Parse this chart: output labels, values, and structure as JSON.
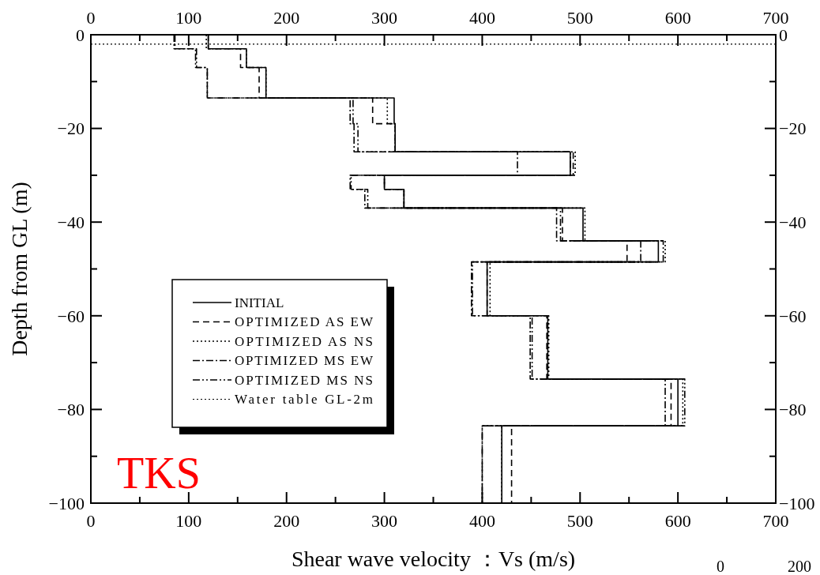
{
  "chart_data": {
    "type": "line",
    "xlabel": "Shear wave velocity ：Vs (m/s)",
    "ylabel": "Depth from GL (m)",
    "xlim": [
      0,
      700
    ],
    "xticks": [
      0,
      {
        "value": 50,
        "label": null
      },
      100,
      {
        "value": 150,
        "label": null
      },
      200,
      {
        "value": 250,
        "label": null
      },
      300,
      {
        "value": 350,
        "label": null
      },
      400,
      {
        "value": 450,
        "label": null
      },
      500,
      {
        "value": 550,
        "label": null
      },
      600,
      {
        "value": 650,
        "label": null
      },
      700
    ],
    "x2lim": [
      0,
      700
    ],
    "x2ticks": [
      0,
      {
        "value": 50,
        "label": null
      },
      100,
      {
        "value": 150,
        "label": null
      },
      200,
      {
        "value": 250,
        "label": null
      },
      300,
      {
        "value": 350,
        "label": null
      },
      400,
      {
        "value": 450,
        "label": null
      },
      500,
      {
        "value": 550,
        "label": null
      },
      600,
      {
        "value": 650,
        "label": null
      },
      700
    ],
    "ylim": [
      -100,
      0
    ],
    "yticks": [
      -100,
      {
        "value": -90,
        "label": null
      },
      -80,
      {
        "value": -70,
        "label": null
      },
      -60,
      {
        "value": -50,
        "label": null
      },
      -40,
      {
        "value": -30,
        "label": null
      },
      -20,
      {
        "value": -10,
        "label": null
      },
      0
    ],
    "y2lim": [
      -100,
      0
    ],
    "y2ticks": [
      -100,
      {
        "value": -90,
        "label": null
      },
      -80,
      {
        "value": -70,
        "label": null
      },
      -60,
      {
        "value": -50,
        "label": null
      },
      -40,
      {
        "value": -30,
        "label": null
      },
      -20,
      {
        "value": -10,
        "label": null
      },
      0
    ],
    "legend": "bottom left",
    "grid": false,
    "marker": "none",
    "series": [
      {
        "name": "INITIAL",
        "color": "#000000",
        "line_style": "solid",
        "x": [
          120,
          120,
          159,
          159,
          179,
          179,
          310,
          310,
          311,
          311,
          490,
          490,
          300,
          300,
          320,
          320,
          503,
          503,
          580,
          580,
          405,
          405,
          467,
          467,
          600,
          600,
          420,
          420
        ],
        "values": [
          0,
          -3,
          -3,
          -7,
          -7,
          -13.5,
          -13.5,
          -19,
          -19,
          -25,
          -25,
          -30,
          -30,
          -33,
          -33,
          -37,
          -37,
          -44,
          -44,
          -48.5,
          -48.5,
          -60,
          -60,
          -73.5,
          -73.5,
          -83.5,
          -83.5,
          -100
        ]
      },
      {
        "name": "OPTIMIZED AS EW",
        "color": "#000000",
        "line_style": "dashed",
        "x": [
          120,
          120,
          153,
          153,
          172,
          172,
          288,
          288,
          311,
          311,
          493,
          493,
          300,
          300,
          320,
          320,
          482,
          482,
          548,
          548,
          405,
          405,
          466,
          466,
          593,
          593,
          430,
          430
        ],
        "values": [
          0,
          -3,
          -3,
          -7,
          -7,
          -13.5,
          -13.5,
          -19,
          -19,
          -25,
          -25,
          -30,
          -30,
          -33,
          -33,
          -37,
          -37,
          -44,
          -44,
          -48.5,
          -48.5,
          -60,
          -60,
          -73.5,
          -73.5,
          -83.5,
          -83.5,
          -100
        ]
      },
      {
        "name": "OPTIMIZED AS NS",
        "color": "#000000",
        "line_style": "dotted",
        "x": [
          118,
          118,
          159,
          159,
          179,
          179,
          303,
          303,
          311,
          311,
          495,
          495,
          300,
          300,
          320,
          320,
          505,
          505,
          587,
          587,
          408,
          408,
          468,
          468,
          605,
          605,
          420,
          420
        ],
        "values": [
          0,
          -3,
          -3,
          -7,
          -7,
          -13.5,
          -13.5,
          -19,
          -19,
          -25,
          -25,
          -30,
          -30,
          -33,
          -33,
          -37,
          -37,
          -44,
          -44,
          -48.5,
          -48.5,
          -60,
          -60,
          -73.5,
          -73.5,
          -83.5,
          -83.5,
          -100
        ]
      },
      {
        "name": "OPTIMIZED MS EW",
        "color": "#000000",
        "line_style": "dashdot",
        "x": [
          85,
          85,
          107,
          107,
          119,
          119,
          265,
          265,
          269,
          269,
          436,
          436,
          265,
          265,
          280,
          280,
          476,
          476,
          562,
          562,
          389,
          389,
          449,
          449,
          587,
          587,
          400,
          400
        ],
        "values": [
          0,
          -3,
          -3,
          -7,
          -7,
          -13.5,
          -13.5,
          -19,
          -19,
          -25,
          -25,
          -30,
          -30,
          -33,
          -33,
          -37,
          -37,
          -44,
          -44,
          -48.5,
          -48.5,
          -60,
          -60,
          -73.5,
          -73.5,
          -83.5,
          -83.5,
          -100
        ]
      },
      {
        "name": "OPTIMIZED MS NS",
        "color": "#000000",
        "line_style": "dashdotdot",
        "x": [
          86,
          86,
          108,
          108,
          119,
          119,
          268,
          268,
          273,
          273,
          490,
          490,
          266,
          266,
          283,
          283,
          480,
          480,
          585,
          585,
          390,
          390,
          451,
          451,
          607,
          607,
          400,
          400
        ],
        "values": [
          0,
          -3,
          -3,
          -7,
          -7,
          -13.5,
          -13.5,
          -19,
          -19,
          -25,
          -25,
          -30,
          -30,
          -33,
          -33,
          -37,
          -37,
          -44,
          -44,
          -48.5,
          -48.5,
          -60,
          -60,
          -73.5,
          -73.5,
          -83.5,
          -83.5,
          -100
        ]
      }
    ],
    "ref_lines": [
      {
        "axis": "y",
        "value": -2,
        "label": "Water table GL-2m",
        "color": "#000000",
        "line_style": "dotted"
      }
    ],
    "annotations": [
      "TKS",
      "0",
      "200"
    ]
  }
}
